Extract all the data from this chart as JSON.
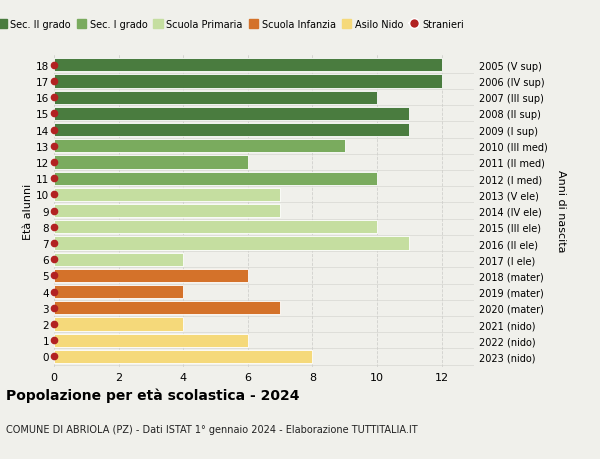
{
  "ages": [
    18,
    17,
    16,
    15,
    14,
    13,
    12,
    11,
    10,
    9,
    8,
    7,
    6,
    5,
    4,
    3,
    2,
    1,
    0
  ],
  "right_labels": [
    "2005 (V sup)",
    "2006 (IV sup)",
    "2007 (III sup)",
    "2008 (II sup)",
    "2009 (I sup)",
    "2010 (III med)",
    "2011 (II med)",
    "2012 (I med)",
    "2013 (V ele)",
    "2014 (IV ele)",
    "2015 (III ele)",
    "2016 (II ele)",
    "2017 (I ele)",
    "2018 (mater)",
    "2019 (mater)",
    "2020 (mater)",
    "2021 (nido)",
    "2022 (nido)",
    "2023 (nido)"
  ],
  "values": [
    12,
    12,
    10,
    11,
    11,
    9,
    6,
    10,
    7,
    7,
    10,
    11,
    4,
    6,
    4,
    7,
    4,
    6,
    8
  ],
  "colors": [
    "#4a7c3f",
    "#4a7c3f",
    "#4a7c3f",
    "#4a7c3f",
    "#4a7c3f",
    "#7aab5e",
    "#7aab5e",
    "#7aab5e",
    "#c5dea0",
    "#c5dea0",
    "#c5dea0",
    "#c5dea0",
    "#c5dea0",
    "#d4722a",
    "#d4722a",
    "#d4722a",
    "#f5d97a",
    "#f5d97a",
    "#f5d97a"
  ],
  "stranieri_marker_color": "#b22222",
  "legend_items": [
    {
      "label": "Sec. II grado",
      "color": "#4a7c3f",
      "type": "patch"
    },
    {
      "label": "Sec. I grado",
      "color": "#7aab5e",
      "type": "patch"
    },
    {
      "label": "Scuola Primaria",
      "color": "#c5dea0",
      "type": "patch"
    },
    {
      "label": "Scuola Infanzia",
      "color": "#d4722a",
      "type": "patch"
    },
    {
      "label": "Asilo Nido",
      "color": "#f5d97a",
      "type": "patch"
    },
    {
      "label": "Stranieri",
      "color": "#b22222",
      "type": "circle"
    }
  ],
  "ylabel_left": "Età alunni",
  "ylabel_right": "Anni di nascita",
  "xlim": [
    0,
    13
  ],
  "xticks": [
    0,
    2,
    4,
    6,
    8,
    10,
    12
  ],
  "title": "Popolazione per età scolastica - 2024",
  "subtitle": "COMUNE DI ABRIOLA (PZ) - Dati ISTAT 1° gennaio 2024 - Elaborazione TUTTITALIA.IT",
  "background_color": "#f0f0eb",
  "bar_height": 0.82,
  "grid_color": "#d0d0cc"
}
